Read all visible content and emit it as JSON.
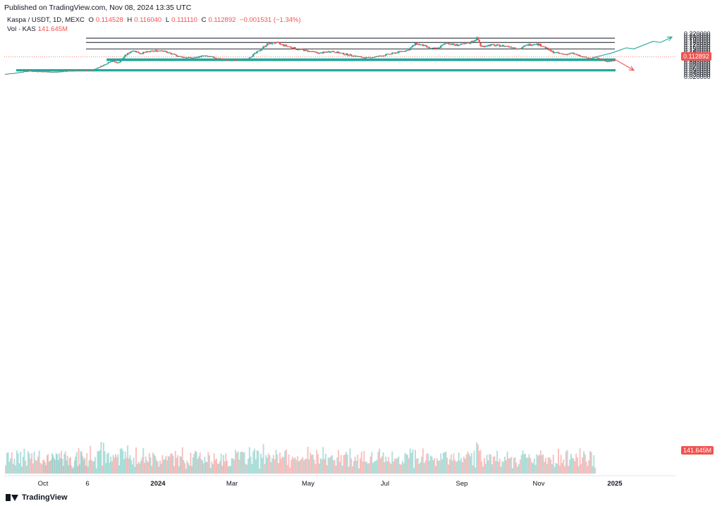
{
  "header": {
    "published": "Published on TradingView.com, Nov 08, 2024 13:35 UTC",
    "symbol": "Kaspa / USDT, 1D, MEXC",
    "o_label": "O",
    "o": "0.114528",
    "h_label": "H",
    "h": "0.116040",
    "l_label": "L",
    "l": "0.111110",
    "c_label": "C",
    "c": "0.112892",
    "change": "−0.001531 (−1.34%)",
    "vol_label": "Vol · KAS",
    "vol": "141.645M"
  },
  "footer": {
    "brand": "TradingView"
  },
  "colors": {
    "up": "#26a69a",
    "down": "#ef5350",
    "zone_fill": "#b2dfdb",
    "zone_stroke": "#26a69a",
    "line": "#131722"
  },
  "chart_data": {
    "type": "candlestick",
    "y_ticks": [
      "0.220000",
      "0.210000",
      "0.200000",
      "0.190000",
      "0.180000",
      "0.170000",
      "0.160000",
      "0.150000",
      "0.140000",
      "0.130000",
      "0.120000",
      "0.110000",
      "0.100000",
      "0.090000",
      "0.080000",
      "0.070000",
      "0.060000",
      "0.050000",
      "0.040000",
      "0.030000",
      "0.020000"
    ],
    "x_ticks": [
      "Oct",
      "6",
      "2024",
      "Mar",
      "May",
      "Jul",
      "Sep",
      "Nov",
      "2025"
    ],
    "ylim": [
      0.017,
      0.225
    ],
    "last_price": "0.112892",
    "last_volume": "141.645M",
    "horizontal_lines": [
      0.2,
      0.18,
      0.15
    ],
    "zones": [
      {
        "name": "support-zone-upper",
        "low": 0.097,
        "high": 0.1025,
        "from_month": 3.0,
        "to_month": 15.0
      },
      {
        "name": "support-zone-lower",
        "low": 0.049,
        "high": 0.053,
        "from_month": 0.3,
        "to_month": 15.0
      }
    ],
    "price_path": [
      [
        0.0,
        0.034
      ],
      [
        0.3,
        0.04
      ],
      [
        0.6,
        0.048
      ],
      [
        1.0,
        0.045
      ],
      [
        1.4,
        0.043
      ],
      [
        1.8,
        0.048
      ],
      [
        2.2,
        0.051
      ],
      [
        2.6,
        0.053
      ],
      [
        2.9,
        0.075
      ],
      [
        3.1,
        0.095
      ],
      [
        3.3,
        0.085
      ],
      [
        3.5,
        0.12
      ],
      [
        3.7,
        0.145
      ],
      [
        3.9,
        0.13
      ],
      [
        4.2,
        0.138
      ],
      [
        4.5,
        0.145
      ],
      [
        4.8,
        0.125
      ],
      [
        5.1,
        0.112
      ],
      [
        5.4,
        0.108
      ],
      [
        5.7,
        0.118
      ],
      [
        6.0,
        0.11
      ],
      [
        6.3,
        0.1
      ],
      [
        6.6,
        0.098
      ],
      [
        6.9,
        0.104
      ],
      [
        7.2,
        0.14
      ],
      [
        7.4,
        0.17
      ],
      [
        7.6,
        0.18
      ],
      [
        7.9,
        0.165
      ],
      [
        8.2,
        0.15
      ],
      [
        8.5,
        0.14
      ],
      [
        8.8,
        0.13
      ],
      [
        9.1,
        0.14
      ],
      [
        9.4,
        0.128
      ],
      [
        9.7,
        0.118
      ],
      [
        10.0,
        0.108
      ],
      [
        10.3,
        0.115
      ],
      [
        10.6,
        0.125
      ],
      [
        10.9,
        0.138
      ],
      [
        11.1,
        0.145
      ],
      [
        11.3,
        0.175
      ],
      [
        11.5,
        0.165
      ],
      [
        11.7,
        0.15
      ],
      [
        11.9,
        0.155
      ],
      [
        12.1,
        0.18
      ],
      [
        12.3,
        0.168
      ],
      [
        12.5,
        0.17
      ],
      [
        12.7,
        0.178
      ],
      [
        12.9,
        0.2
      ],
      [
        13.0,
        0.16
      ],
      [
        13.2,
        0.168
      ],
      [
        13.5,
        0.165
      ],
      [
        13.8,
        0.16
      ],
      [
        14.0,
        0.15
      ],
      [
        14.2,
        0.168
      ],
      [
        14.4,
        0.175
      ],
      [
        14.6,
        0.165
      ],
      [
        14.8,
        0.14
      ],
      [
        15.0,
        0.13
      ],
      [
        15.2,
        0.125
      ],
      [
        15.4,
        0.13
      ],
      [
        15.6,
        0.115
      ],
      [
        15.8,
        0.108
      ],
      [
        16.0,
        0.113
      ]
    ],
    "projection_up": [
      [
        16.0,
        0.113
      ],
      [
        16.4,
        0.13
      ],
      [
        16.8,
        0.155
      ],
      [
        17.0,
        0.15
      ],
      [
        17.5,
        0.185
      ],
      [
        17.7,
        0.18
      ],
      [
        18.0,
        0.205
      ]
    ],
    "projection_down": [
      [
        16.0,
        0.113
      ],
      [
        16.3,
        0.09
      ],
      [
        16.55,
        0.097
      ],
      [
        17.0,
        0.051
      ]
    ]
  }
}
